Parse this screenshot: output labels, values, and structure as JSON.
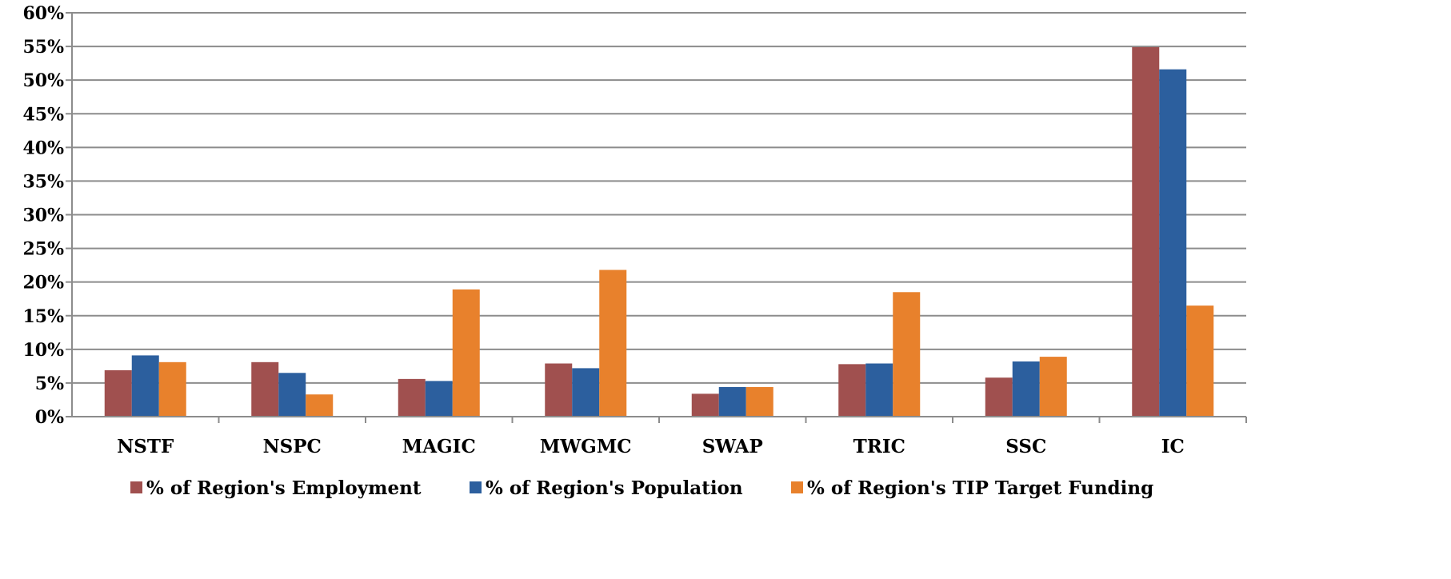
{
  "chart_data": {
    "type": "bar",
    "title": "",
    "xlabel": "",
    "ylabel": "",
    "ylim": [
      0,
      60
    ],
    "y_ticks": [
      "0%",
      "5%",
      "10%",
      "15%",
      "20%",
      "25%",
      "30%",
      "35%",
      "40%",
      "45%",
      "50%",
      "55%",
      "60%"
    ],
    "y_tick_values": [
      0,
      5,
      10,
      15,
      20,
      25,
      30,
      35,
      40,
      45,
      50,
      55,
      60
    ],
    "grid": "horizontal",
    "legend_position": "bottom",
    "categories": [
      "NSTF",
      "NSPC",
      "MAGIC",
      "MWGMC",
      "SWAP",
      "TRIC",
      "SSC",
      "IC"
    ],
    "series": [
      {
        "name": "% of Region's Employment",
        "color": "#A0504F",
        "values": [
          6.9,
          8.1,
          5.6,
          7.9,
          3.4,
          7.8,
          5.8,
          54.9
        ]
      },
      {
        "name": "% of Region's Population",
        "color": "#2C5F9E",
        "values": [
          9.1,
          6.5,
          5.3,
          7.2,
          4.4,
          7.9,
          8.2,
          51.6
        ]
      },
      {
        "name": "% of Region's TIP Target Funding",
        "color": "#E8812C",
        "values": [
          8.1,
          3.3,
          18.9,
          21.8,
          4.4,
          18.5,
          8.9,
          16.5
        ]
      }
    ]
  }
}
